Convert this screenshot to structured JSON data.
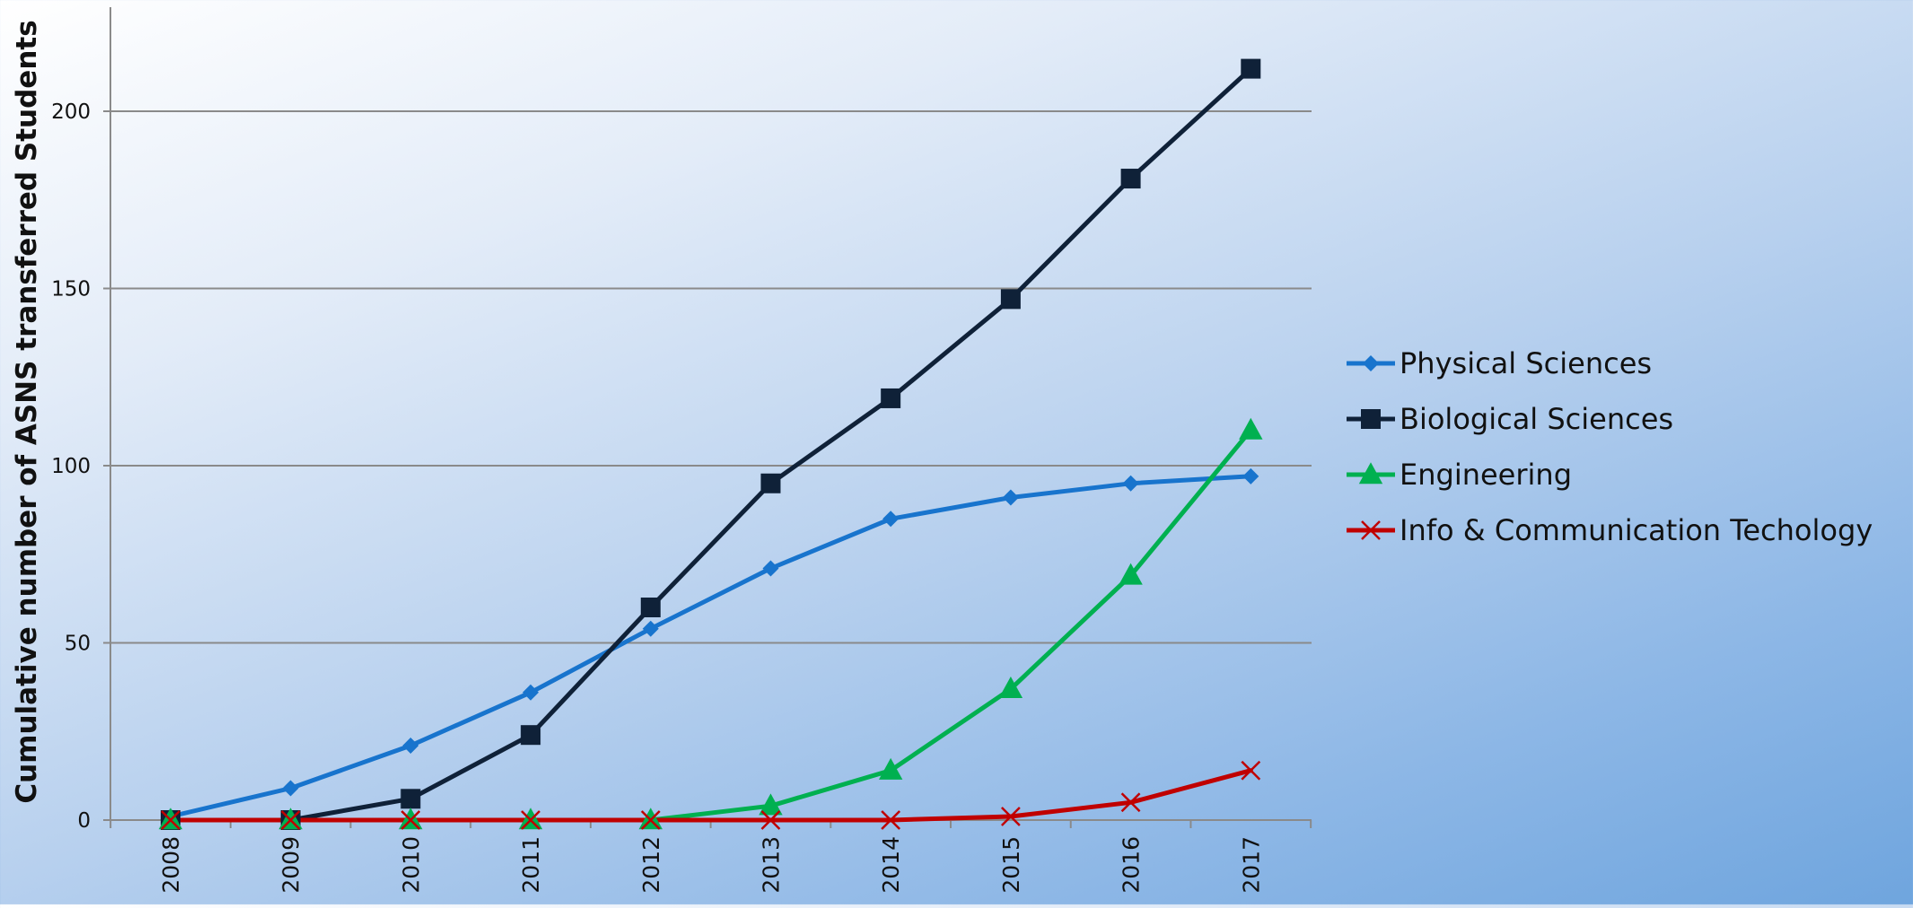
{
  "chart_data": {
    "type": "line",
    "title": "",
    "xlabel": "",
    "ylabel": "Cumulative number of  ASNS transferred Students",
    "ylim": [
      0,
      225
    ],
    "yticks": [
      0,
      50,
      100,
      150,
      200
    ],
    "grid": true,
    "legend_position": "right",
    "categories": [
      "2008",
      "2009",
      "2010",
      "2011",
      "2012",
      "2013",
      "2014",
      "2015",
      "2016",
      "2017"
    ],
    "series": [
      {
        "name": "Physical Sciences",
        "color": "#1874cd",
        "marker": "diamond",
        "values": [
          1,
          9,
          21,
          36,
          54,
          71,
          85,
          91,
          95,
          97
        ]
      },
      {
        "name": "Biological Sciences",
        "color": "#0f2138",
        "marker": "square",
        "values": [
          0,
          0,
          6,
          24,
          60,
          95,
          119,
          147,
          181,
          212
        ]
      },
      {
        "name": "Engineering",
        "color": "#00b050",
        "marker": "triangle",
        "values": [
          0,
          0,
          0,
          0,
          0,
          4,
          14,
          37,
          69,
          110
        ]
      },
      {
        "name": "Info & Communication Techology",
        "color": "#c00000",
        "marker": "x",
        "values": [
          0,
          0,
          0,
          0,
          0,
          0,
          0,
          1,
          5,
          14
        ]
      }
    ]
  }
}
